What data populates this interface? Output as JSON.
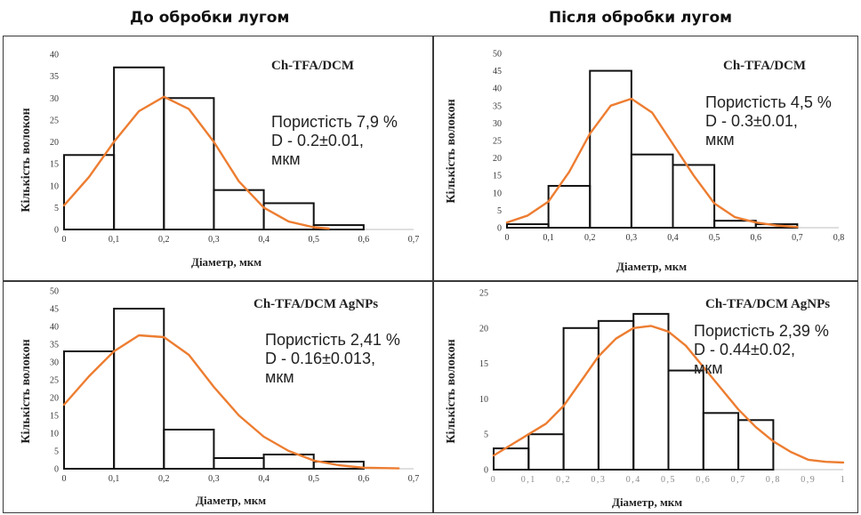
{
  "headings": {
    "left": "До обробки лугом",
    "right": "Після обробки лугом"
  },
  "colors": {
    "bar_stroke": "#111111",
    "curve": "#ED7D31",
    "frame": "#3a3a3a"
  },
  "chart_data": [
    {
      "type": "bar",
      "title": "Ch-TFA/DCM",
      "xlabel": "Діаметр, мкм",
      "ylabel": "Кількість волокон",
      "xticks": [
        "0",
        "0,1",
        "0,2",
        "0,3",
        "0,4",
        "0,5",
        "0,6",
        "0,7"
      ],
      "yticks": [
        "0",
        "5",
        "10",
        "15",
        "20",
        "25",
        "30",
        "35",
        "40"
      ],
      "xlim": [
        0,
        0.7
      ],
      "ylim": [
        0,
        40
      ],
      "bin_edges": [
        0,
        0.1,
        0.2,
        0.3,
        0.4,
        0.5,
        0.6
      ],
      "values": [
        17,
        37,
        30,
        9,
        6,
        1
      ],
      "curve": {
        "x": [
          0,
          0.05,
          0.1,
          0.15,
          0.2,
          0.25,
          0.3,
          0.35,
          0.4,
          0.45,
          0.5,
          0.53
        ],
        "y": [
          5.5,
          12,
          20,
          27,
          30.3,
          27.5,
          20,
          11,
          5,
          1.8,
          0.5,
          0.2
        ]
      },
      "note": [
        "Пористість 7,9 %",
        "D - 0.2±0.01,",
        "мкм"
      ]
    },
    {
      "type": "bar",
      "title": "Ch-TFA/DCM",
      "xlabel": "Діаметр,  мкм",
      "ylabel": "Кількість волокон",
      "xticks": [
        "0",
        "0,1",
        "0,2",
        "0,3",
        "0,4",
        "0,5",
        "0,6",
        "0,7",
        "0,8"
      ],
      "yticks": [
        "0",
        "5",
        "10",
        "15",
        "20",
        "25",
        "30",
        "35",
        "40",
        "45",
        "50"
      ],
      "xlim": [
        0,
        0.8
      ],
      "ylim": [
        0,
        50
      ],
      "bin_edges": [
        0,
        0.1,
        0.2,
        0.3,
        0.4,
        0.5,
        0.6,
        0.7
      ],
      "values": [
        1,
        12,
        45,
        21,
        18,
        2,
        1
      ],
      "curve": {
        "x": [
          0,
          0.05,
          0.1,
          0.15,
          0.2,
          0.25,
          0.3,
          0.35,
          0.4,
          0.45,
          0.5,
          0.55,
          0.6,
          0.65,
          0.7
        ],
        "y": [
          1.5,
          3.5,
          7.5,
          16,
          27,
          35,
          37,
          33,
          24,
          15,
          7,
          3,
          1.5,
          0.6,
          0.2
        ]
      },
      "note": [
        "Пористість 4,5 %",
        " D - 0.3±0.01,",
        " мкм"
      ]
    },
    {
      "type": "bar",
      "title": "Ch-TFA/DCM AgNPs",
      "xlabel": "Діаметр, мкм",
      "ylabel": "Кількість волокон",
      "xticks": [
        "0",
        "0,1",
        "0,2",
        "0,3",
        "0,4",
        "0,5",
        "0,6",
        "0,7"
      ],
      "yticks": [
        "0",
        "5",
        "10",
        "15",
        "20",
        "25",
        "30",
        "35",
        "40",
        "45",
        "50"
      ],
      "xlim": [
        0,
        0.7
      ],
      "ylim": [
        0,
        50
      ],
      "bin_edges": [
        0,
        0.1,
        0.2,
        0.3,
        0.4,
        0.5,
        0.6
      ],
      "values": [
        33,
        45,
        11,
        3,
        4,
        2
      ],
      "curve": {
        "x": [
          0,
          0.05,
          0.1,
          0.15,
          0.2,
          0.25,
          0.3,
          0.35,
          0.4,
          0.45,
          0.5,
          0.55,
          0.6,
          0.67
        ],
        "y": [
          18,
          26,
          33,
          37.5,
          37,
          32,
          23,
          15,
          9,
          5,
          2.3,
          1,
          0.3,
          0.1
        ]
      },
      "note": [
        "Пористість 2,41 %",
        " D - 0.16±0.013,",
        "мкм"
      ]
    },
    {
      "type": "bar",
      "title": "Ch-TFA/DCM AgNPs",
      "xlabel": "Діаметр, мкм",
      "ylabel": "Кількість волокон",
      "xticks": [
        "0",
        "0,1",
        "0,2",
        "0,3",
        "0,4",
        "0,5",
        "0,6",
        "0,7",
        "0,8",
        "0,9",
        "1"
      ],
      "yticks": [
        "0",
        "5",
        "10",
        "15",
        "20",
        "25"
      ],
      "xlim": [
        0,
        1
      ],
      "ylim": [
        0,
        25
      ],
      "bin_edges": [
        0,
        0.1,
        0.2,
        0.3,
        0.4,
        0.5,
        0.6,
        0.7,
        0.8
      ],
      "values": [
        3,
        5,
        20,
        21,
        22,
        14,
        8,
        7
      ],
      "curve": {
        "x": [
          0,
          0.05,
          0.1,
          0.15,
          0.2,
          0.25,
          0.3,
          0.35,
          0.4,
          0.45,
          0.5,
          0.55,
          0.6,
          0.65,
          0.7,
          0.75,
          0.8,
          0.85,
          0.9,
          0.95,
          1.0
        ],
        "y": [
          2,
          3.5,
          5,
          6.5,
          9,
          12.5,
          16,
          18.5,
          20,
          20.3,
          19.5,
          17.5,
          14.5,
          11.5,
          8.5,
          6,
          4,
          2.5,
          1.4,
          1.1,
          1
        ]
      },
      "note": [
        " Пористість 2,39 %",
        " D - 0.44±0.02,",
        " мкм"
      ]
    }
  ]
}
